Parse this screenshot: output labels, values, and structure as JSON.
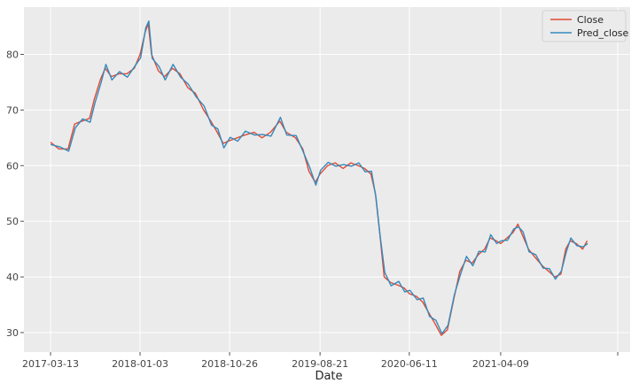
{
  "chart_data": {
    "type": "line",
    "title": "",
    "xlabel": "Date",
    "ylabel": "",
    "grid": true,
    "legend_position": "top-right",
    "x_tick_labels": [
      "2017-03-13",
      "2018-01-03",
      "2018-10-26",
      "2019-08-21",
      "2020-06-11",
      "2021-04-09"
    ],
    "x_range": [
      "2017-03-13",
      "2022-05-01"
    ],
    "ylim": [
      26.5,
      88.5
    ],
    "y_ticks": [
      30,
      40,
      50,
      60,
      70,
      80
    ],
    "background_color": "#ebebeb",
    "series": [
      {
        "name": "Close",
        "color": "#e24a33",
        "points": [
          [
            "2017-03-13",
            64.2
          ],
          [
            "2017-04-10",
            63.0
          ],
          [
            "2017-05-10",
            63.0
          ],
          [
            "2017-06-01",
            67.5
          ],
          [
            "2017-06-25",
            68.0
          ],
          [
            "2017-07-20",
            68.5
          ],
          [
            "2017-08-05",
            72.0
          ],
          [
            "2017-08-25",
            75.5
          ],
          [
            "2017-09-10",
            77.5
          ],
          [
            "2017-09-30",
            76.0
          ],
          [
            "2017-10-25",
            76.5
          ],
          [
            "2017-11-20",
            76.5
          ],
          [
            "2017-12-15",
            77.5
          ],
          [
            "2018-01-03",
            80.0
          ],
          [
            "2018-01-20",
            84.0
          ],
          [
            "2018-01-30",
            85.5
          ],
          [
            "2018-02-10",
            80.0
          ],
          [
            "2018-03-05",
            77.0
          ],
          [
            "2018-03-25",
            76.0
          ],
          [
            "2018-04-20",
            77.5
          ],
          [
            "2018-05-15",
            76.5
          ],
          [
            "2018-06-10",
            74.0
          ],
          [
            "2018-07-05",
            73.0
          ],
          [
            "2018-08-01",
            70.0
          ],
          [
            "2018-08-25",
            68.0
          ],
          [
            "2018-09-15",
            66.0
          ],
          [
            "2018-10-05",
            64.0
          ],
          [
            "2018-10-26",
            64.5
          ],
          [
            "2018-11-20",
            65.0
          ],
          [
            "2018-12-15",
            65.5
          ],
          [
            "2019-01-15",
            66.0
          ],
          [
            "2019-02-10",
            65.0
          ],
          [
            "2019-03-10",
            66.0
          ],
          [
            "2019-04-10",
            68.0
          ],
          [
            "2019-05-01",
            66.0
          ],
          [
            "2019-06-01",
            65.0
          ],
          [
            "2019-06-25",
            63.0
          ],
          [
            "2019-07-15",
            59.0
          ],
          [
            "2019-08-05",
            57.0
          ],
          [
            "2019-08-21",
            58.5
          ],
          [
            "2019-09-15",
            60.0
          ],
          [
            "2019-10-10",
            60.5
          ],
          [
            "2019-11-05",
            59.5
          ],
          [
            "2019-12-01",
            60.5
          ],
          [
            "2019-12-25",
            60.0
          ],
          [
            "2020-01-15",
            59.5
          ],
          [
            "2020-02-05",
            58.5
          ],
          [
            "2020-02-20",
            55.0
          ],
          [
            "2020-03-05",
            48.0
          ],
          [
            "2020-03-20",
            40.0
          ],
          [
            "2020-04-10",
            39.0
          ],
          [
            "2020-05-05",
            38.5
          ],
          [
            "2020-05-25",
            38.0
          ],
          [
            "2020-06-11",
            37.0
          ],
          [
            "2020-07-05",
            36.5
          ],
          [
            "2020-07-25",
            35.5
          ],
          [
            "2020-08-15",
            33.5
          ],
          [
            "2020-09-05",
            31.5
          ],
          [
            "2020-09-25",
            29.5
          ],
          [
            "2020-10-15",
            30.5
          ],
          [
            "2020-11-05",
            36.0
          ],
          [
            "2020-11-25",
            41.0
          ],
          [
            "2020-12-15",
            43.0
          ],
          [
            "2021-01-05",
            42.5
          ],
          [
            "2021-01-25",
            44.0
          ],
          [
            "2021-02-15",
            45.0
          ],
          [
            "2021-03-05",
            47.0
          ],
          [
            "2021-03-25",
            46.5
          ],
          [
            "2021-04-09",
            46.0
          ],
          [
            "2021-04-30",
            47.0
          ],
          [
            "2021-05-20",
            48.0
          ],
          [
            "2021-06-05",
            49.5
          ],
          [
            "2021-06-20",
            47.5
          ],
          [
            "2021-07-10",
            45.0
          ],
          [
            "2021-08-01",
            43.5
          ],
          [
            "2021-08-25",
            42.0
          ],
          [
            "2021-09-15",
            41.0
          ],
          [
            "2021-10-05",
            40.0
          ],
          [
            "2021-10-25",
            40.5
          ],
          [
            "2021-11-10",
            45.0
          ],
          [
            "2021-11-25",
            46.5
          ],
          [
            "2021-12-15",
            46.0
          ],
          [
            "2022-01-05",
            45.0
          ],
          [
            "2022-01-20",
            46.5
          ]
        ]
      },
      {
        "name": "Pred_close",
        "color": "#348abd",
        "points": [
          [
            "2017-03-13",
            63.8
          ],
          [
            "2017-04-12",
            63.4
          ],
          [
            "2017-05-12",
            62.6
          ],
          [
            "2017-06-03",
            66.8
          ],
          [
            "2017-06-27",
            68.4
          ],
          [
            "2017-07-22",
            67.8
          ],
          [
            "2017-08-07",
            71.3
          ],
          [
            "2017-08-27",
            74.9
          ],
          [
            "2017-09-12",
            78.2
          ],
          [
            "2017-10-02",
            75.4
          ],
          [
            "2017-10-27",
            76.9
          ],
          [
            "2017-11-22",
            75.9
          ],
          [
            "2017-12-17",
            77.9
          ],
          [
            "2018-01-05",
            79.4
          ],
          [
            "2018-01-22",
            84.8
          ],
          [
            "2018-02-01",
            86.0
          ],
          [
            "2018-02-12",
            79.3
          ],
          [
            "2018-03-07",
            77.8
          ],
          [
            "2018-03-27",
            75.4
          ],
          [
            "2018-04-22",
            78.2
          ],
          [
            "2018-05-17",
            75.9
          ],
          [
            "2018-06-12",
            74.6
          ],
          [
            "2018-07-07",
            72.4
          ],
          [
            "2018-08-03",
            70.7
          ],
          [
            "2018-08-27",
            67.3
          ],
          [
            "2018-09-17",
            66.6
          ],
          [
            "2018-10-07",
            63.2
          ],
          [
            "2018-10-28",
            65.1
          ],
          [
            "2018-11-22",
            64.4
          ],
          [
            "2018-12-17",
            66.2
          ],
          [
            "2019-01-17",
            65.5
          ],
          [
            "2019-02-12",
            65.6
          ],
          [
            "2019-03-12",
            65.3
          ],
          [
            "2019-04-12",
            68.7
          ],
          [
            "2019-05-03",
            65.5
          ],
          [
            "2019-06-03",
            65.4
          ],
          [
            "2019-06-27",
            62.4
          ],
          [
            "2019-07-17",
            59.8
          ],
          [
            "2019-08-07",
            56.5
          ],
          [
            "2019-08-23",
            59.2
          ],
          [
            "2019-09-17",
            60.6
          ],
          [
            "2019-10-12",
            59.9
          ],
          [
            "2019-11-07",
            60.2
          ],
          [
            "2019-12-03",
            59.9
          ],
          [
            "2019-12-27",
            60.5
          ],
          [
            "2020-01-17",
            58.9
          ],
          [
            "2020-02-07",
            59.0
          ],
          [
            "2020-02-22",
            54.2
          ],
          [
            "2020-03-07",
            47.2
          ],
          [
            "2020-03-22",
            40.8
          ],
          [
            "2020-04-12",
            38.4
          ],
          [
            "2020-05-07",
            39.2
          ],
          [
            "2020-05-27",
            37.3
          ],
          [
            "2020-06-13",
            37.6
          ],
          [
            "2020-07-07",
            35.9
          ],
          [
            "2020-07-27",
            36.2
          ],
          [
            "2020-08-17",
            32.9
          ],
          [
            "2020-09-07",
            32.2
          ],
          [
            "2020-09-27",
            29.8
          ],
          [
            "2020-10-17",
            31.3
          ],
          [
            "2020-11-07",
            36.8
          ],
          [
            "2020-11-27",
            40.4
          ],
          [
            "2020-12-17",
            43.7
          ],
          [
            "2021-01-07",
            42.0
          ],
          [
            "2021-01-27",
            44.6
          ],
          [
            "2021-02-17",
            44.5
          ],
          [
            "2021-03-07",
            47.6
          ],
          [
            "2021-03-27",
            46.0
          ],
          [
            "2021-04-11",
            46.5
          ],
          [
            "2021-05-02",
            46.6
          ],
          [
            "2021-05-22",
            48.6
          ],
          [
            "2021-06-07",
            49.0
          ],
          [
            "2021-06-22",
            48.1
          ],
          [
            "2021-07-12",
            44.5
          ],
          [
            "2021-08-03",
            44.0
          ],
          [
            "2021-08-27",
            41.6
          ],
          [
            "2021-09-17",
            41.5
          ],
          [
            "2021-10-07",
            39.6
          ],
          [
            "2021-10-27",
            41.1
          ],
          [
            "2021-11-12",
            44.5
          ],
          [
            "2021-11-27",
            47.0
          ],
          [
            "2021-12-17",
            45.6
          ],
          [
            "2022-01-07",
            45.4
          ],
          [
            "2022-01-22",
            46.0
          ]
        ]
      }
    ]
  }
}
